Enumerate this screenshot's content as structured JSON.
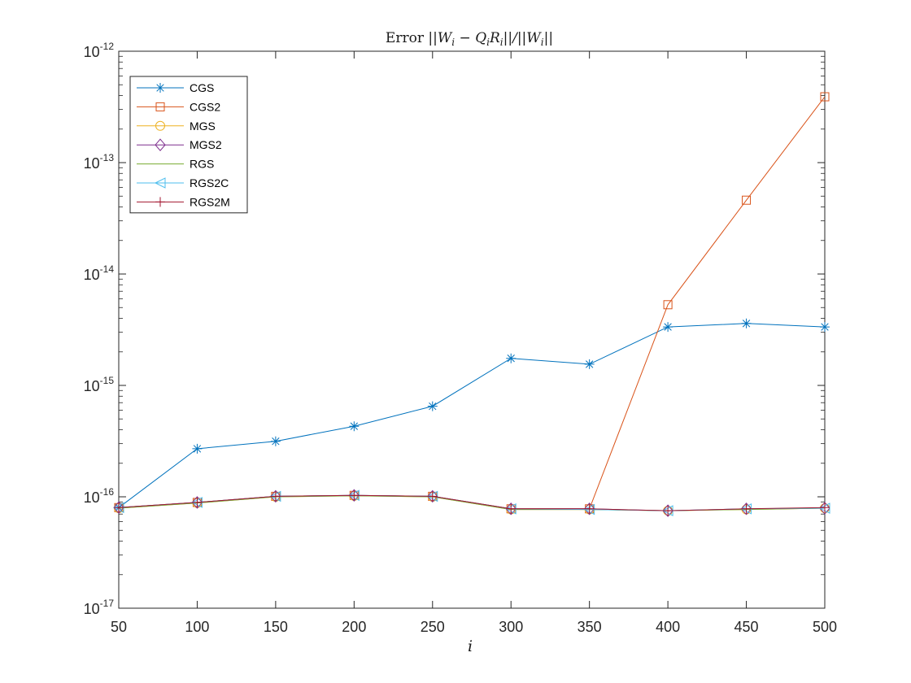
{
  "chart_data": {
    "type": "line",
    "title": "Error ||W_i − Q_i R_i||/||W_i||",
    "title_parts": {
      "prefix": "Error",
      "expression_parts": [
        "||W",
        "i",
        " − Q",
        "i",
        "R",
        "i",
        "||/||W",
        "i",
        "||"
      ]
    },
    "xlabel": "i",
    "ylabel": "",
    "x": [
      50,
      100,
      150,
      200,
      250,
      300,
      350,
      400,
      450,
      500
    ],
    "x_tick_labels": [
      "50",
      "100",
      "150",
      "200",
      "250",
      "300",
      "350",
      "400",
      "450",
      "500"
    ],
    "xlim": [
      50,
      500
    ],
    "ylim": [
      1e-17,
      1e-12
    ],
    "yscale": "log",
    "y_ticks": [
      {
        "base": "10",
        "exp": "-17",
        "value": 1e-17
      },
      {
        "base": "10",
        "exp": "-16",
        "value": 1e-16
      },
      {
        "base": "10",
        "exp": "-15",
        "value": 1e-15
      },
      {
        "base": "10",
        "exp": "-14",
        "value": 1e-14
      },
      {
        "base": "10",
        "exp": "-13",
        "value": 1e-13
      },
      {
        "base": "10",
        "exp": "-12",
        "value": 1e-12
      }
    ],
    "grid": false,
    "legend_position": "top-left",
    "series": [
      {
        "name": "CGS",
        "color": "#0072BD",
        "marker": "asterisk",
        "values": [
          8e-17,
          2.7e-16,
          3.15e-16,
          4.3e-16,
          6.5e-16,
          1.75e-15,
          1.55e-15,
          3.35e-15,
          3.6e-15,
          3.35e-15
        ]
      },
      {
        "name": "CGS2",
        "color": "#D95319",
        "marker": "square",
        "values": [
          8e-17,
          8.9e-17,
          1.01e-16,
          1.03e-16,
          1.01e-16,
          7.8e-17,
          7.8e-17,
          5.3e-15,
          4.6e-14,
          3.9e-13
        ]
      },
      {
        "name": "MGS",
        "color": "#EDB120",
        "marker": "circle",
        "values": [
          7.9e-17,
          8.8e-17,
          1e-16,
          1.02e-16,
          1e-16,
          7.7e-17,
          7.7e-17,
          7.5e-17,
          7.7e-17,
          7.9e-17
        ]
      },
      {
        "name": "MGS2",
        "color": "#7E2F8E",
        "marker": "diamond",
        "values": [
          8e-17,
          8.9e-17,
          1.01e-16,
          1.03e-16,
          1.01e-16,
          7.8e-17,
          7.8e-17,
          7.5e-17,
          7.8e-17,
          7.9e-17
        ]
      },
      {
        "name": "RGS",
        "color": "#77AC30",
        "marker": "none",
        "values": [
          7.9e-17,
          8.8e-17,
          1e-16,
          1.02e-16,
          1e-16,
          7.7e-17,
          7.7e-17,
          7.5e-17,
          7.7e-17,
          7.9e-17
        ]
      },
      {
        "name": "RGS2C",
        "color": "#4DBEEE",
        "marker": "triangle-left",
        "values": [
          8e-17,
          8.9e-17,
          1.01e-16,
          1.03e-16,
          1.01e-16,
          7.8e-17,
          7.7e-17,
          7.5e-17,
          7.8e-17,
          7.9e-17
        ]
      },
      {
        "name": "RGS2M",
        "color": "#A2142F",
        "marker": "plus",
        "values": [
          8e-17,
          8.9e-17,
          1.01e-16,
          1.03e-16,
          1.01e-16,
          7.8e-17,
          7.8e-17,
          7.5e-17,
          7.8e-17,
          8e-17
        ]
      }
    ]
  }
}
